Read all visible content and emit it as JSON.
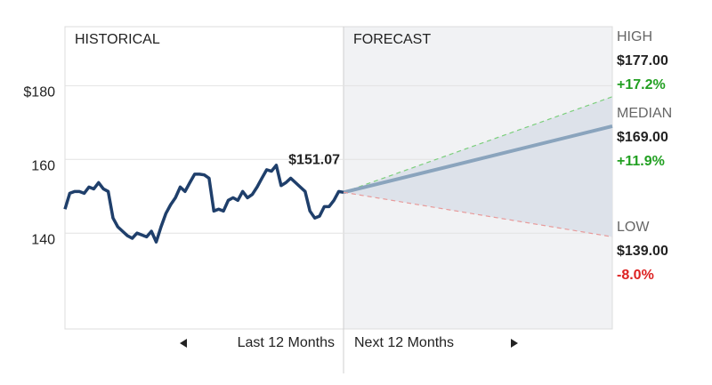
{
  "chart_data": {
    "type": "forecast",
    "sections": [
      "HISTORICAL",
      "FORECAST"
    ],
    "x_labels": [
      "Last 12 Months",
      "Next 12 Months"
    ],
    "ylim": [
      114,
      196
    ],
    "yticks": [
      {
        "value": 180,
        "label": "$180"
      },
      160,
      140
    ],
    "grid": true,
    "historical": {
      "color": "#1f3f6b",
      "values": [
        146.5,
        150.8,
        151.3,
        151.3,
        150.8,
        152.5,
        152.0,
        153.7,
        152.0,
        151.3,
        144.1,
        141.7,
        140.5,
        139.3,
        138.6,
        140.0,
        139.5,
        139.0,
        140.5,
        137.6,
        141.7,
        145.3,
        147.7,
        149.6,
        152.5,
        151.3,
        153.7,
        156.0,
        156.0,
        155.8,
        154.9,
        146.0,
        146.5,
        146.0,
        148.9,
        149.6,
        148.9,
        151.3,
        149.6,
        150.5,
        152.5,
        154.9,
        157.2,
        156.8,
        158.4,
        152.9,
        153.7,
        154.9,
        153.7,
        152.5,
        151.3,
        146.0,
        144.1,
        144.6,
        147.2,
        147.2,
        148.9,
        151.3,
        151.07
      ],
      "last_label": "$151.07"
    },
    "cone_color": "#dde2ea",
    "series": [
      {
        "name": "HIGH",
        "color": "#7ccf7c",
        "dashed": true,
        "value": 177,
        "value_label": "$177.00",
        "change": 17.2,
        "change_label": "+17.2%",
        "change_color": "#22a022"
      },
      {
        "name": "MEDIAN",
        "color": "#8aa4bd",
        "dashed": false,
        "value": 169,
        "value_label": "$169.00",
        "change": 11.9,
        "change_label": "+11.9%",
        "change_color": "#22a022"
      },
      {
        "name": "LOW",
        "color": "#e89a9a",
        "dashed": true,
        "value": 139,
        "value_label": "$139.00",
        "change": -8.0,
        "change_label": "-8.0%",
        "change_color": "#dd2222"
      }
    ]
  }
}
